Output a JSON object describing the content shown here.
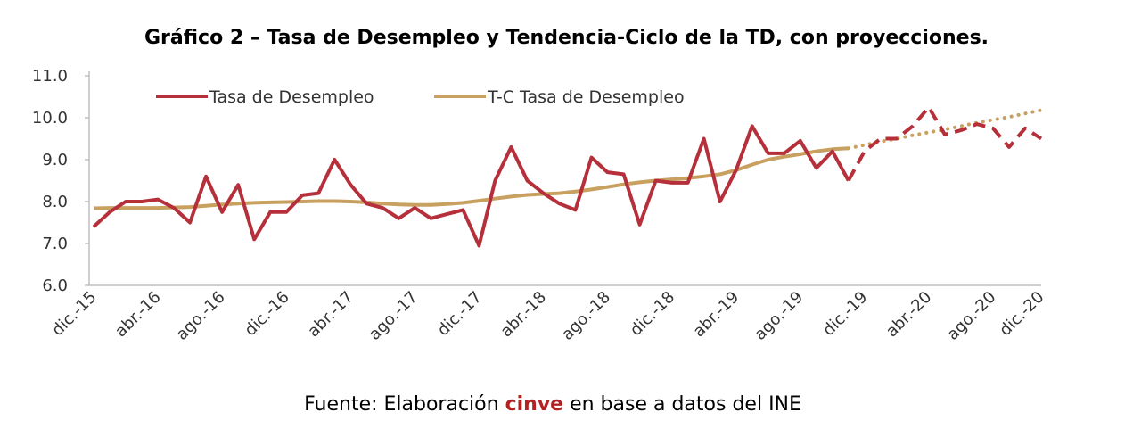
{
  "chart_data": {
    "type": "line",
    "title": "Gráfico 2 – Tasa de Desempleo y Tendencia-Ciclo de la TD, con proyecciones.",
    "xlabel": "",
    "ylabel": "",
    "ylim": [
      6.0,
      11.0
    ],
    "yticks": [
      "6.0",
      "7.0",
      "8.0",
      "9.0",
      "10.0",
      "11.0"
    ],
    "xticks": [
      "dic.-15",
      "abr.-16",
      "ago.-16",
      "dic.-16",
      "abr.-17",
      "ago.-17",
      "dic.-17",
      "abr.-18",
      "ago.-18",
      "dic.-18",
      "abr.-19",
      "ago.-19",
      "dic.-19",
      "abr.-20",
      "ago.-20",
      "dic.-20"
    ],
    "grid": false,
    "legend": "top-left",
    "series": [
      {
        "name": "Tasa de Desempleo",
        "color": "#b5303a",
        "style": "solid",
        "start_index": 0,
        "values": [
          7.4,
          7.75,
          8.0,
          8.0,
          8.05,
          7.85,
          7.5,
          8.6,
          7.75,
          8.4,
          7.1,
          7.75,
          7.75,
          8.15,
          8.2,
          9.0,
          8.4,
          7.95,
          7.85,
          7.6,
          7.85,
          7.6,
          7.7,
          7.8,
          6.95,
          8.5,
          9.3,
          8.5,
          8.2,
          7.95,
          7.8,
          9.05,
          8.7,
          8.65,
          7.45,
          8.5,
          8.45,
          8.45,
          9.5,
          8.0,
          8.75,
          9.8,
          9.15,
          9.15,
          9.45,
          8.8,
          9.2,
          8.5
        ]
      },
      {
        "name": "",
        "color": "#b5303a",
        "style": "dashed",
        "start_index": 47,
        "values": [
          8.5,
          9.2,
          9.5,
          9.5,
          9.8,
          10.25,
          9.6,
          9.7,
          9.85,
          9.75,
          9.3,
          9.75,
          9.5
        ]
      },
      {
        "name": "T-C Tasa de Desempleo",
        "color": "#c8a060",
        "style": "solid",
        "start_index": 0,
        "values": [
          7.84,
          7.85,
          7.85,
          7.85,
          7.85,
          7.86,
          7.87,
          7.9,
          7.93,
          7.95,
          7.97,
          7.98,
          7.99,
          8.0,
          8.01,
          8.01,
          8.0,
          7.98,
          7.95,
          7.93,
          7.92,
          7.92,
          7.94,
          7.97,
          8.02,
          8.07,
          8.12,
          8.16,
          8.18,
          8.2,
          8.24,
          8.29,
          8.35,
          8.41,
          8.46,
          8.5,
          8.53,
          8.56,
          8.6,
          8.65,
          8.75,
          8.88,
          9.0,
          9.07,
          9.13,
          9.2,
          9.25,
          9.27
        ]
      },
      {
        "name": "",
        "color": "#c8a060",
        "style": "dotted",
        "start_index": 47,
        "values": [
          9.27,
          9.35,
          9.43,
          9.5,
          9.58,
          9.65,
          9.72,
          9.8,
          9.88,
          9.95,
          10.02,
          10.1,
          10.18
        ]
      }
    ]
  },
  "footer": {
    "source_prefix": "Fuente: Elaboración ",
    "source_brand": "cinve",
    "source_suffix": " en base a datos del INE"
  }
}
